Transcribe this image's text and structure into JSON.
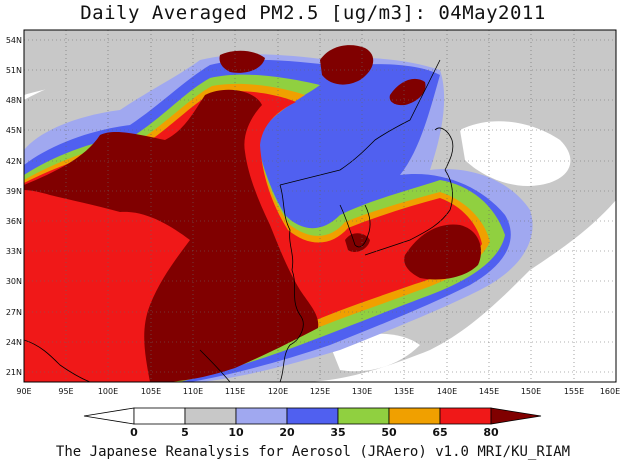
{
  "title": "Daily Averaged PM2.5 [ug/m3]: 04May2011",
  "footer": "The Japanese Reanalysis for Aerosol (JRAero) v1.0 MRI/KU_RIAM",
  "map": {
    "lon_range": [
      90,
      160
    ],
    "lat_range": [
      20,
      55
    ],
    "gridlines": "dotted",
    "lon_ticks": [
      "90E",
      "95E",
      "100E",
      "105E",
      "110E",
      "115E",
      "120E",
      "125E",
      "130E",
      "135E",
      "140E",
      "145E",
      "150E",
      "155E",
      "160E"
    ],
    "lat_ticks": [
      "54N",
      "51N",
      "48N",
      "45N",
      "42N",
      "39N",
      "36N",
      "33N",
      "30N",
      "27N",
      "24N",
      "21N"
    ]
  },
  "colorbar": {
    "levels": [
      "0",
      "5",
      "10",
      "20",
      "35",
      "50",
      "65",
      "80"
    ],
    "colors": [
      "#ffffff",
      "#c8c8c8",
      "#a0a8f0",
      "#5060f0",
      "#90d040",
      "#f0a000",
      "#f01818",
      "#800000"
    ]
  }
}
